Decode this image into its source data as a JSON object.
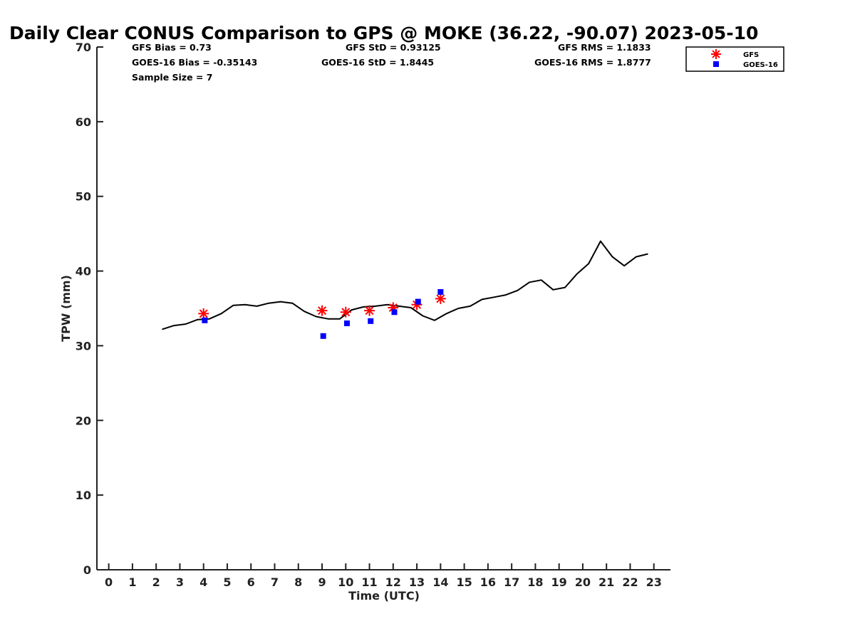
{
  "chart_data": {
    "type": "line",
    "title": "Daily Clear CONUS Comparison to GPS @ MOKE (36.22, -90.07) 2023-05-10",
    "xlabel": "Time (UTC)",
    "ylabel": "TPW (mm)",
    "xlim": [
      -0.5,
      23.7
    ],
    "ylim": [
      0,
      70
    ],
    "x_ticks": [
      0,
      1,
      2,
      3,
      4,
      5,
      6,
      7,
      8,
      9,
      10,
      11,
      12,
      13,
      14,
      15,
      16,
      17,
      18,
      19,
      20,
      21,
      22,
      23
    ],
    "y_ticks": [
      0,
      10,
      20,
      30,
      40,
      50,
      60,
      70
    ],
    "x_tick_labels": [
      "0",
      "1",
      "2",
      "3",
      "4",
      "5",
      "6",
      "7",
      "8",
      "9",
      "10",
      "11",
      "12",
      "13",
      "14",
      "15",
      "16",
      "17",
      "18",
      "19",
      "20",
      "21",
      "22",
      "23"
    ],
    "y_tick_labels": [
      "0",
      "10",
      "20",
      "30",
      "40",
      "50",
      "60",
      "70"
    ],
    "grid": false,
    "legend_position": "top-right",
    "stats": {
      "gfs_bias": "GFS Bias = 0.73",
      "goes_bias": "GOES-16 Bias = -0.35143",
      "sample_size": "Sample Size = 7",
      "gfs_std": "GFS StD = 0.93125",
      "goes_std": "GOES-16 StD = 1.8445",
      "gfs_rms": "GFS RMS = 1.1833",
      "goes_rms": "GOES-16 RMS = 1.8777"
    },
    "legend": {
      "gfs": "GFS",
      "goes": "GOES-16"
    },
    "series": [
      {
        "name": "",
        "kind": "line",
        "color": "#000000",
        "points": [
          [
            2.25,
            32.2
          ],
          [
            2.75,
            32.7
          ],
          [
            3.25,
            32.9
          ],
          [
            3.75,
            33.5
          ],
          [
            4.25,
            33.6
          ],
          [
            4.75,
            34.3
          ],
          [
            5.25,
            35.4
          ],
          [
            5.75,
            35.5
          ],
          [
            6.25,
            35.3
          ],
          [
            6.75,
            35.7
          ],
          [
            7.25,
            35.9
          ],
          [
            7.75,
            35.7
          ],
          [
            8.25,
            34.6
          ],
          [
            8.75,
            33.9
          ],
          [
            9.25,
            33.6
          ],
          [
            9.75,
            33.6
          ],
          [
            10.25,
            34.8
          ],
          [
            10.75,
            35.2
          ],
          [
            11.25,
            35.3
          ],
          [
            11.75,
            35.5
          ],
          [
            12.25,
            35.3
          ],
          [
            12.75,
            35.1
          ],
          [
            13.25,
            34.0
          ],
          [
            13.75,
            33.4
          ],
          [
            14.25,
            34.3
          ],
          [
            14.75,
            35.0
          ],
          [
            15.25,
            35.3
          ],
          [
            15.75,
            36.2
          ],
          [
            16.25,
            36.5
          ],
          [
            16.75,
            36.8
          ],
          [
            17.25,
            37.4
          ],
          [
            17.75,
            38.5
          ],
          [
            18.25,
            38.8
          ],
          [
            18.75,
            37.5
          ],
          [
            19.25,
            37.8
          ],
          [
            19.75,
            39.6
          ],
          [
            20.25,
            41.0
          ],
          [
            20.75,
            44.0
          ],
          [
            21.25,
            41.9
          ],
          [
            21.75,
            40.7
          ],
          [
            22.25,
            41.9
          ],
          [
            22.75,
            42.3
          ]
        ]
      },
      {
        "name": "GFS",
        "kind": "asterisk",
        "color": "#ff0000",
        "points": [
          [
            4.0,
            34.3
          ],
          [
            9.0,
            34.7
          ],
          [
            10.0,
            34.5
          ],
          [
            11.0,
            34.7
          ],
          [
            12.0,
            35.1
          ],
          [
            13.0,
            35.5
          ],
          [
            14.0,
            36.3
          ]
        ]
      },
      {
        "name": "GOES-16",
        "kind": "square",
        "color": "#0000ff",
        "points": [
          [
            4.05,
            33.4
          ],
          [
            9.05,
            31.3
          ],
          [
            10.05,
            33.0
          ],
          [
            11.05,
            33.3
          ],
          [
            12.05,
            34.5
          ],
          [
            13.05,
            35.9
          ],
          [
            14.0,
            37.2
          ]
        ]
      }
    ]
  }
}
